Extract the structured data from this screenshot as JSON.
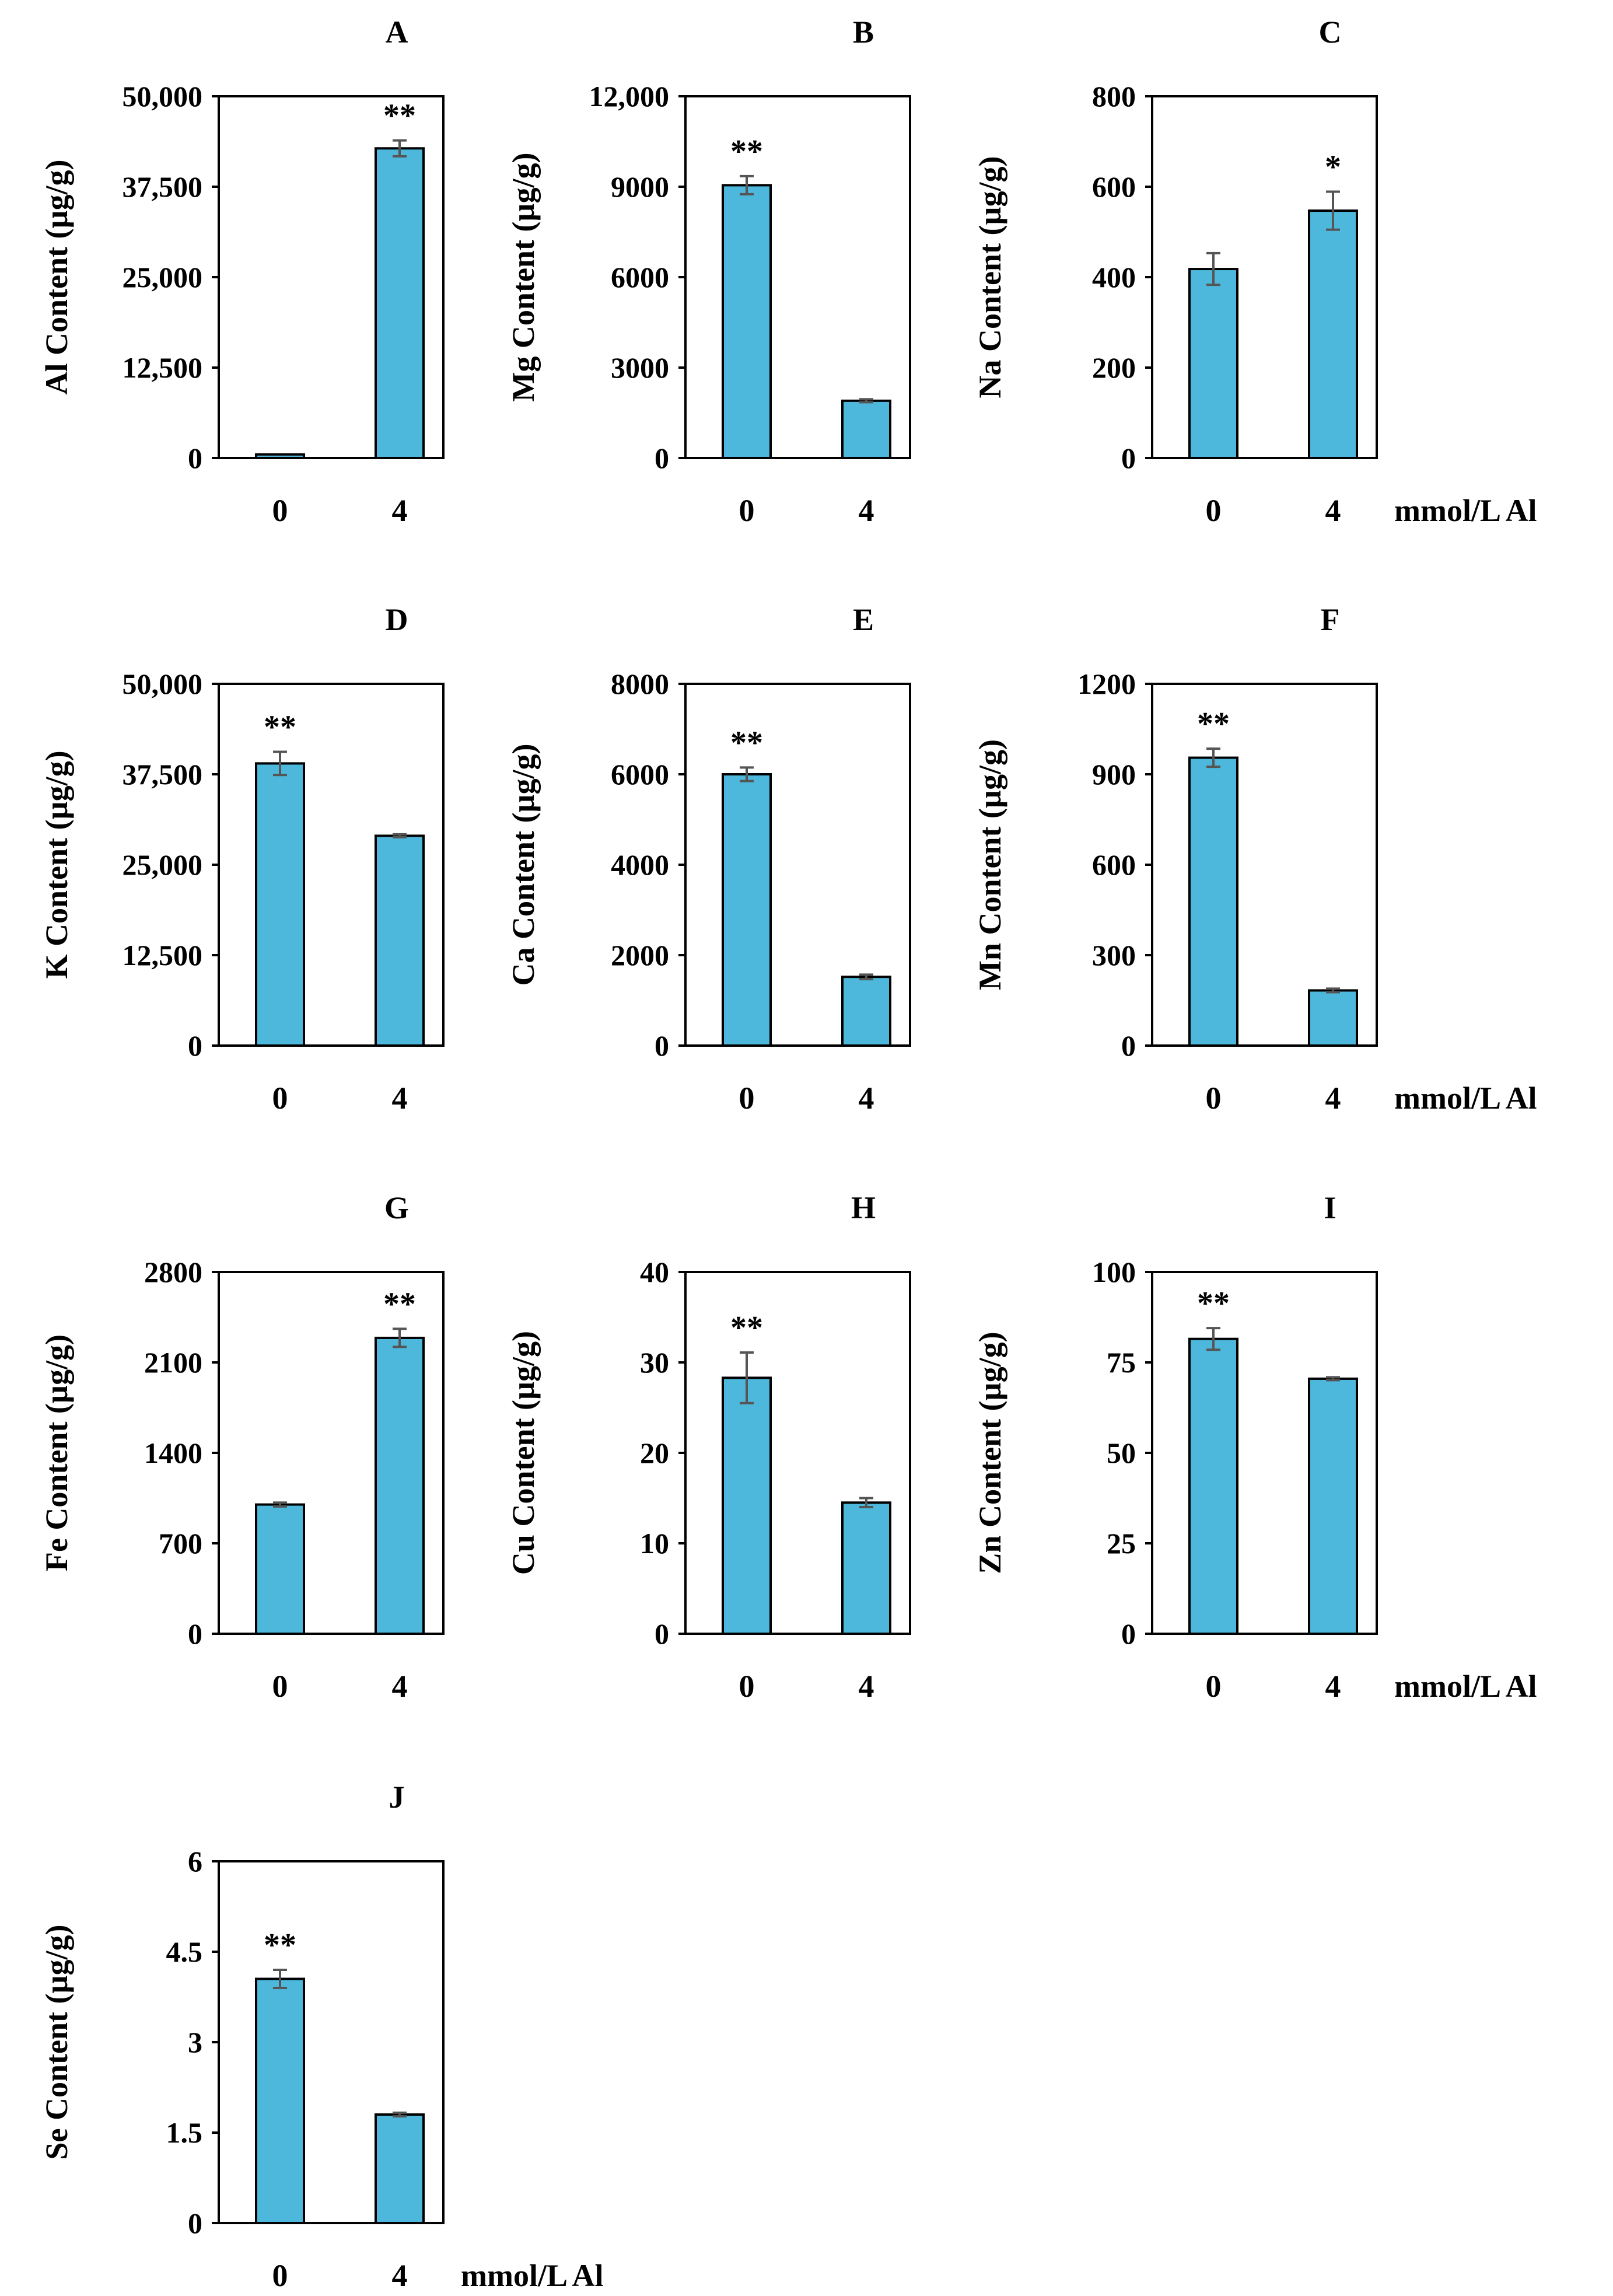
{
  "figure": {
    "unit_label": "mmol/L Al",
    "bar_color": "#4db8dc",
    "error_color": "#555555"
  },
  "chart_data": [
    {
      "panel": "A",
      "type": "bar",
      "ylabel": "Al Content (µg/g)",
      "xlabel": "mmol/L Al",
      "categories": [
        "0",
        "4"
      ],
      "values": [
        500,
        42800
      ],
      "errors": [
        0,
        1100
      ],
      "significance": [
        "",
        "**"
      ],
      "ylim": [
        0,
        50000
      ],
      "ticks": [
        0,
        12500,
        25000,
        37500,
        50000
      ],
      "tick_labels": [
        "0",
        "12,500",
        "25,000",
        "37,500",
        "50,000"
      ]
    },
    {
      "panel": "B",
      "type": "bar",
      "ylabel": "Mg Content (µg/g)",
      "xlabel": "mmol/L Al",
      "categories": [
        "0",
        "4"
      ],
      "values": [
        9050,
        1900
      ],
      "errors": [
        300,
        50
      ],
      "significance": [
        "**",
        ""
      ],
      "ylim": [
        0,
        12000
      ],
      "ticks": [
        0,
        3000,
        6000,
        9000,
        12000
      ],
      "tick_labels": [
        "0",
        "3000",
        "6000",
        "9000",
        "12,000"
      ]
    },
    {
      "panel": "C",
      "type": "bar",
      "ylabel": "Na Content  (µg/g)",
      "xlabel": "mmol/L Al",
      "categories": [
        "0",
        "4"
      ],
      "values": [
        418,
        547
      ],
      "errors": [
        35,
        42
      ],
      "significance": [
        "",
        "*"
      ],
      "ylim": [
        0,
        800
      ],
      "ticks": [
        0,
        200,
        400,
        600,
        800
      ],
      "tick_labels": [
        "0",
        "200",
        "400",
        "600",
        "800"
      ]
    },
    {
      "panel": "D",
      "type": "bar",
      "ylabel": "K Content (µg/g)",
      "xlabel": "mmol/L Al",
      "categories": [
        "0",
        "4"
      ],
      "values": [
        39000,
        29000
      ],
      "errors": [
        1600,
        200
      ],
      "significance": [
        "**",
        ""
      ],
      "ylim": [
        0,
        50000
      ],
      "ticks": [
        0,
        12500,
        25000,
        37500,
        50000
      ],
      "tick_labels": [
        "0",
        "12,500",
        "25,000",
        "37,500",
        "50,000"
      ]
    },
    {
      "panel": "E",
      "type": "bar",
      "ylabel": "Ca Content (µg/g)",
      "xlabel": "mmol/L Al",
      "categories": [
        "0",
        "4"
      ],
      "values": [
        6000,
        1520
      ],
      "errors": [
        150,
        50
      ],
      "significance": [
        "**",
        ""
      ],
      "ylim": [
        0,
        8000
      ],
      "ticks": [
        0,
        2000,
        4000,
        6000,
        8000
      ],
      "tick_labels": [
        "0",
        "2000",
        "4000",
        "6000",
        "8000"
      ]
    },
    {
      "panel": "F",
      "type": "bar",
      "ylabel": "Mn Content (µg/g)",
      "xlabel": "mmol/L Al",
      "categories": [
        "0",
        "4"
      ],
      "values": [
        955,
        183
      ],
      "errors": [
        30,
        6
      ],
      "significance": [
        "**",
        ""
      ],
      "ylim": [
        0,
        1200
      ],
      "ticks": [
        0,
        300,
        600,
        900,
        1200
      ],
      "tick_labels": [
        "0",
        "300",
        "600",
        "900",
        "1200"
      ]
    },
    {
      "panel": "G",
      "type": "bar",
      "ylabel": "Fe Content (µg/g)",
      "xlabel": "mmol/L Al",
      "categories": [
        "0",
        "4"
      ],
      "values": [
        1000,
        2290
      ],
      "errors": [
        15,
        70
      ],
      "significance": [
        "",
        "**"
      ],
      "ylim": [
        0,
        2800
      ],
      "ticks": [
        0,
        700,
        1400,
        2100,
        2800
      ],
      "tick_labels": [
        "0",
        "700",
        "1400",
        "2100",
        "2800"
      ]
    },
    {
      "panel": "H",
      "type": "bar",
      "ylabel": "Cu Content (µg/g)",
      "xlabel": "mmol/L Al",
      "categories": [
        "0",
        "4"
      ],
      "values": [
        28.3,
        14.5
      ],
      "errors": [
        2.8,
        0.5
      ],
      "significance": [
        "**",
        ""
      ],
      "ylim": [
        0,
        40
      ],
      "ticks": [
        0,
        10,
        20,
        30,
        40
      ],
      "tick_labels": [
        "0",
        "10",
        "20",
        "30",
        "40"
      ]
    },
    {
      "panel": "I",
      "type": "bar",
      "ylabel": "Zn Content (µg/g)",
      "xlabel": "mmol/L Al",
      "categories": [
        "0",
        "4"
      ],
      "values": [
        81.5,
        70.5
      ],
      "errors": [
        3.0,
        0.4
      ],
      "significance": [
        "**",
        ""
      ],
      "ylim": [
        0,
        100
      ],
      "ticks": [
        0,
        25,
        50,
        75,
        100
      ],
      "tick_labels": [
        "0",
        "25",
        "50",
        "75",
        "100"
      ]
    },
    {
      "panel": "J",
      "type": "bar",
      "ylabel": "Se Content (µg/g)",
      "xlabel": "mmol/L Al",
      "categories": [
        "0",
        "4"
      ],
      "values": [
        4.05,
        1.8
      ],
      "errors": [
        0.15,
        0.03
      ],
      "significance": [
        "**",
        ""
      ],
      "ylim": [
        0,
        6
      ],
      "ticks": [
        0,
        1.5,
        3,
        4.5,
        6
      ],
      "tick_labels": [
        "0",
        "1.5",
        "3",
        "4.5",
        "6"
      ]
    }
  ]
}
